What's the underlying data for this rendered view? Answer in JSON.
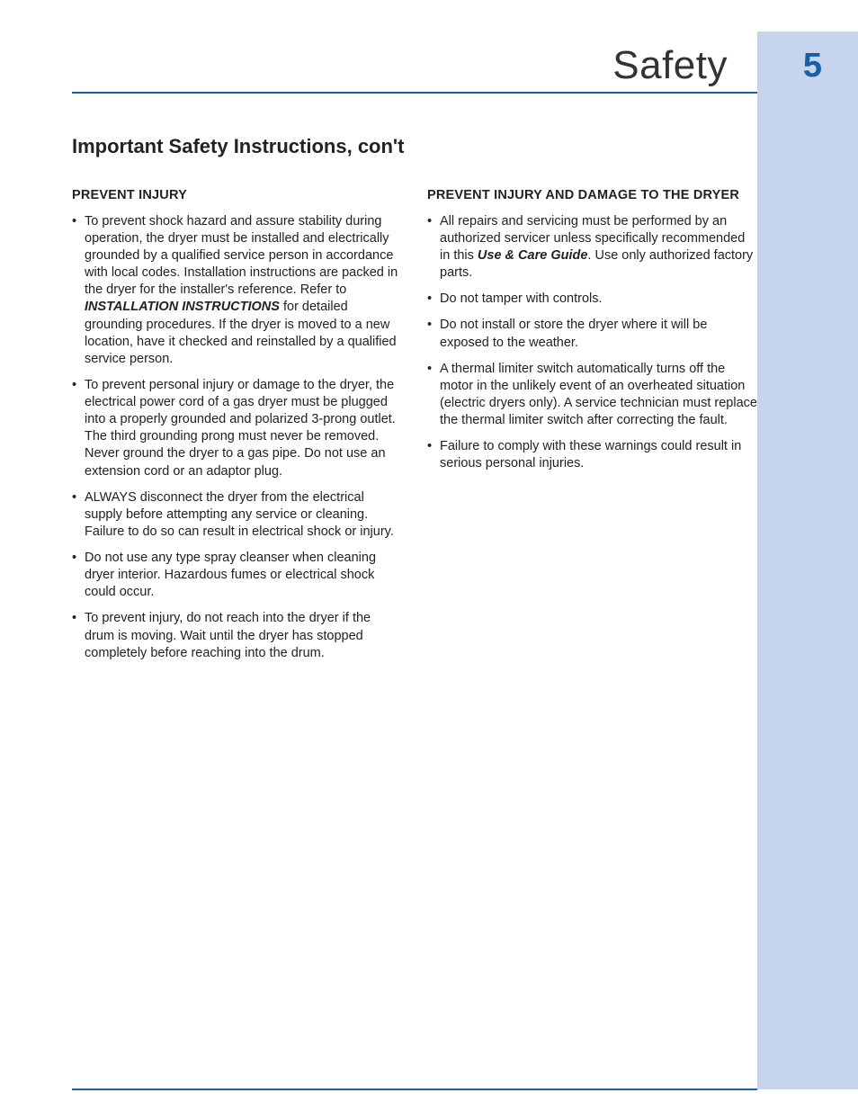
{
  "colors": {
    "accent": "#1a5da8",
    "sidebar_bg": "#c6d4ec",
    "text": "#222222",
    "page_bg": "#ffffff"
  },
  "header": {
    "title": "Safety",
    "page_number": "5"
  },
  "section_title": "Important Safety Instructions, con't",
  "left": {
    "heading": "PREVENT INJURY",
    "items": [
      {
        "pre": "To prevent shock hazard and assure stability during operation, the dryer must be installed and electrically grounded by a qualified service person in accordance with local codes. Installation instructions are packed in the dryer for the installer's reference. Refer to ",
        "bold": "INSTALLATION INSTRUCTIONS",
        "post": " for detailed grounding procedures. If the dryer is moved to a new location, have it checked and reinstalled by a qualified service person."
      },
      {
        "text": "To prevent personal injury or damage to the dryer, the electrical power cord of a gas dryer must be plugged into a properly grounded and polarized 3-prong outlet. The third grounding prong must never be removed. Never ground the dryer to a gas pipe. Do not use an extension cord or an adaptor plug."
      },
      {
        "text": "ALWAYS disconnect the dryer from the electrical supply before attempting any service or cleaning. Failure to do so can result in electrical shock or injury."
      },
      {
        "text": "Do not use any type spray cleanser when cleaning dryer interior. Hazardous fumes or electrical shock could occur."
      },
      {
        "text": "To prevent injury, do not reach into the dryer if the drum is moving. Wait until the dryer has stopped completely before reaching into the drum."
      }
    ]
  },
  "right": {
    "heading": "PREVENT INJURY AND DAMAGE TO THE DRYER",
    "items": [
      {
        "pre": "All repairs and servicing must be performed by an authorized servicer unless specifically recommended in this ",
        "bold": "Use & Care Guide",
        "post": ". Use only authorized factory parts."
      },
      {
        "text": "Do not tamper with controls."
      },
      {
        "text": "Do not install or store the dryer where it will be exposed to the weather."
      },
      {
        "text": "A thermal limiter switch automatically turns off the motor in the unlikely event of an overheated situation (electric dryers only). A service technician must replace the thermal limiter switch after correcting the fault."
      },
      {
        "text": "Failure to comply with these warnings could result in serious personal injuries."
      }
    ]
  }
}
